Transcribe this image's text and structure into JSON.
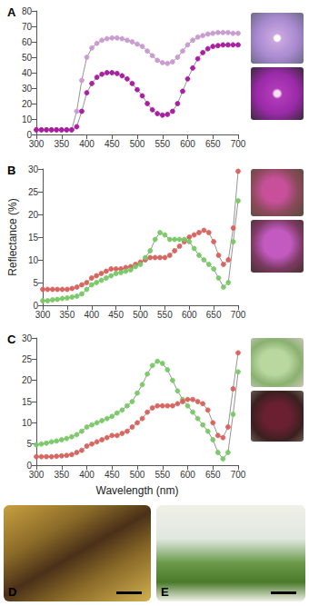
{
  "chart_data": [
    {
      "type": "line",
      "title": "A",
      "x": [
        300,
        310,
        320,
        330,
        340,
        350,
        360,
        370,
        380,
        390,
        400,
        410,
        420,
        430,
        440,
        450,
        460,
        470,
        480,
        490,
        500,
        510,
        520,
        530,
        540,
        550,
        560,
        570,
        580,
        590,
        600,
        610,
        620,
        630,
        640,
        650,
        660,
        670,
        680,
        690,
        700
      ],
      "series": [
        {
          "color": "#c89ad0",
          "marker": "circle",
          "values": [
            3,
            3,
            3,
            3,
            3,
            3,
            3,
            3,
            15,
            35,
            50,
            56,
            59,
            61,
            62,
            62.5,
            62.5,
            62,
            61,
            60,
            58.5,
            57,
            54,
            51,
            48,
            46.5,
            46,
            47,
            50,
            54,
            58,
            61,
            63,
            64,
            65,
            65.5,
            66,
            66,
            66,
            65.5,
            65.5
          ]
        },
        {
          "color": "#a8169e",
          "marker": "circle",
          "values": [
            3,
            3,
            3,
            3,
            3,
            3,
            3,
            3,
            5,
            15,
            27,
            33,
            37,
            39,
            40,
            40,
            39.5,
            38,
            36,
            33,
            29,
            25,
            20,
            16,
            13.5,
            12.5,
            13,
            15,
            20,
            28,
            36,
            43,
            49,
            53,
            55.5,
            57,
            57.5,
            58,
            58,
            58,
            58
          ]
        }
      ],
      "xlim": [
        300,
        700
      ],
      "xticks": [
        300,
        350,
        400,
        450,
        500,
        550,
        600,
        650,
        700
      ],
      "ylim": [
        0,
        80
      ],
      "yticks": [
        0,
        10,
        20,
        30,
        40,
        50,
        60,
        70,
        80
      ],
      "grid": false
    },
    {
      "type": "line",
      "title": "B",
      "ylabel": "Reflectance (%)",
      "x": [
        300,
        310,
        320,
        330,
        340,
        350,
        360,
        370,
        380,
        390,
        400,
        410,
        420,
        430,
        440,
        450,
        460,
        470,
        480,
        490,
        500,
        510,
        520,
        530,
        540,
        550,
        560,
        570,
        580,
        590,
        600,
        610,
        620,
        630,
        640,
        650,
        660,
        670,
        680,
        690,
        700
      ],
      "series": [
        {
          "color": "#d9605a",
          "marker": "circle",
          "values": [
            3.5,
            3.5,
            3.5,
            3.5,
            3.5,
            3.5,
            3.7,
            4,
            4.5,
            5,
            6,
            6.5,
            7,
            7.5,
            8,
            8,
            8,
            8.3,
            8.5,
            9,
            9.5,
            10,
            10.5,
            10.5,
            10.5,
            10.5,
            11,
            12,
            13,
            14,
            15,
            15.5,
            16,
            16.5,
            16,
            14,
            11,
            9,
            10,
            17,
            29.5
          ]
        },
        {
          "color": "#78c865",
          "marker": "circle",
          "values": [
            1,
            1,
            1.2,
            1.3,
            1.5,
            1.6,
            1.8,
            2,
            2.5,
            3.5,
            4.5,
            5,
            5.5,
            6,
            6.5,
            7,
            7.2,
            7.5,
            7.8,
            8.5,
            9,
            10.5,
            12,
            14.5,
            16,
            15.5,
            14.5,
            14.5,
            14.5,
            14.5,
            14,
            12.5,
            11,
            10,
            9,
            8,
            6,
            4,
            5,
            14,
            23
          ]
        }
      ],
      "xlim": [
        300,
        700
      ],
      "xticks": [
        300,
        350,
        400,
        450,
        500,
        550,
        600,
        650,
        700
      ],
      "ylim": [
        0,
        30
      ],
      "yticks": [
        0,
        5,
        10,
        15,
        20,
        25,
        30
      ],
      "grid": false
    },
    {
      "type": "line",
      "title": "C",
      "xlabel": "Wavelength (nm)",
      "x": [
        300,
        310,
        320,
        330,
        340,
        350,
        360,
        370,
        380,
        390,
        400,
        410,
        420,
        430,
        440,
        450,
        460,
        470,
        480,
        490,
        500,
        510,
        520,
        530,
        540,
        550,
        560,
        570,
        580,
        590,
        600,
        610,
        620,
        630,
        640,
        650,
        660,
        670,
        680,
        690,
        700
      ],
      "series": [
        {
          "color": "#78c865",
          "marker": "circle",
          "values": [
            4.8,
            5,
            5.2,
            5.5,
            5.7,
            6,
            6.3,
            6.7,
            7.2,
            8,
            9,
            9.5,
            10,
            10.5,
            11,
            11.5,
            12.3,
            13,
            14,
            15,
            17,
            19,
            21.5,
            23.5,
            24.5,
            24,
            22.5,
            20,
            17.5,
            15.5,
            14,
            12.5,
            11,
            9.5,
            8,
            6,
            3,
            1.5,
            3,
            12,
            22
          ]
        },
        {
          "color": "#d9605a",
          "marker": "circle",
          "values": [
            2,
            2,
            2,
            2,
            2.1,
            2.2,
            2.3,
            2.5,
            3,
            3.5,
            4.5,
            5,
            5.5,
            6,
            6.5,
            7,
            7,
            7.5,
            8,
            9,
            10,
            11,
            12.5,
            13.5,
            14,
            14,
            14,
            14,
            14.5,
            15,
            15.5,
            15.5,
            15,
            14.5,
            13,
            10,
            7,
            6.5,
            9,
            18,
            26.5
          ]
        }
      ],
      "xlim": [
        300,
        700
      ],
      "xticks": [
        300,
        350,
        400,
        450,
        500,
        550,
        600,
        650,
        700
      ],
      "ylim": [
        0,
        30
      ],
      "yticks": [
        0,
        5,
        10,
        15,
        20,
        25,
        30
      ],
      "grid": false
    }
  ],
  "images": [
    {
      "label": "D"
    },
    {
      "label": "E"
    }
  ]
}
